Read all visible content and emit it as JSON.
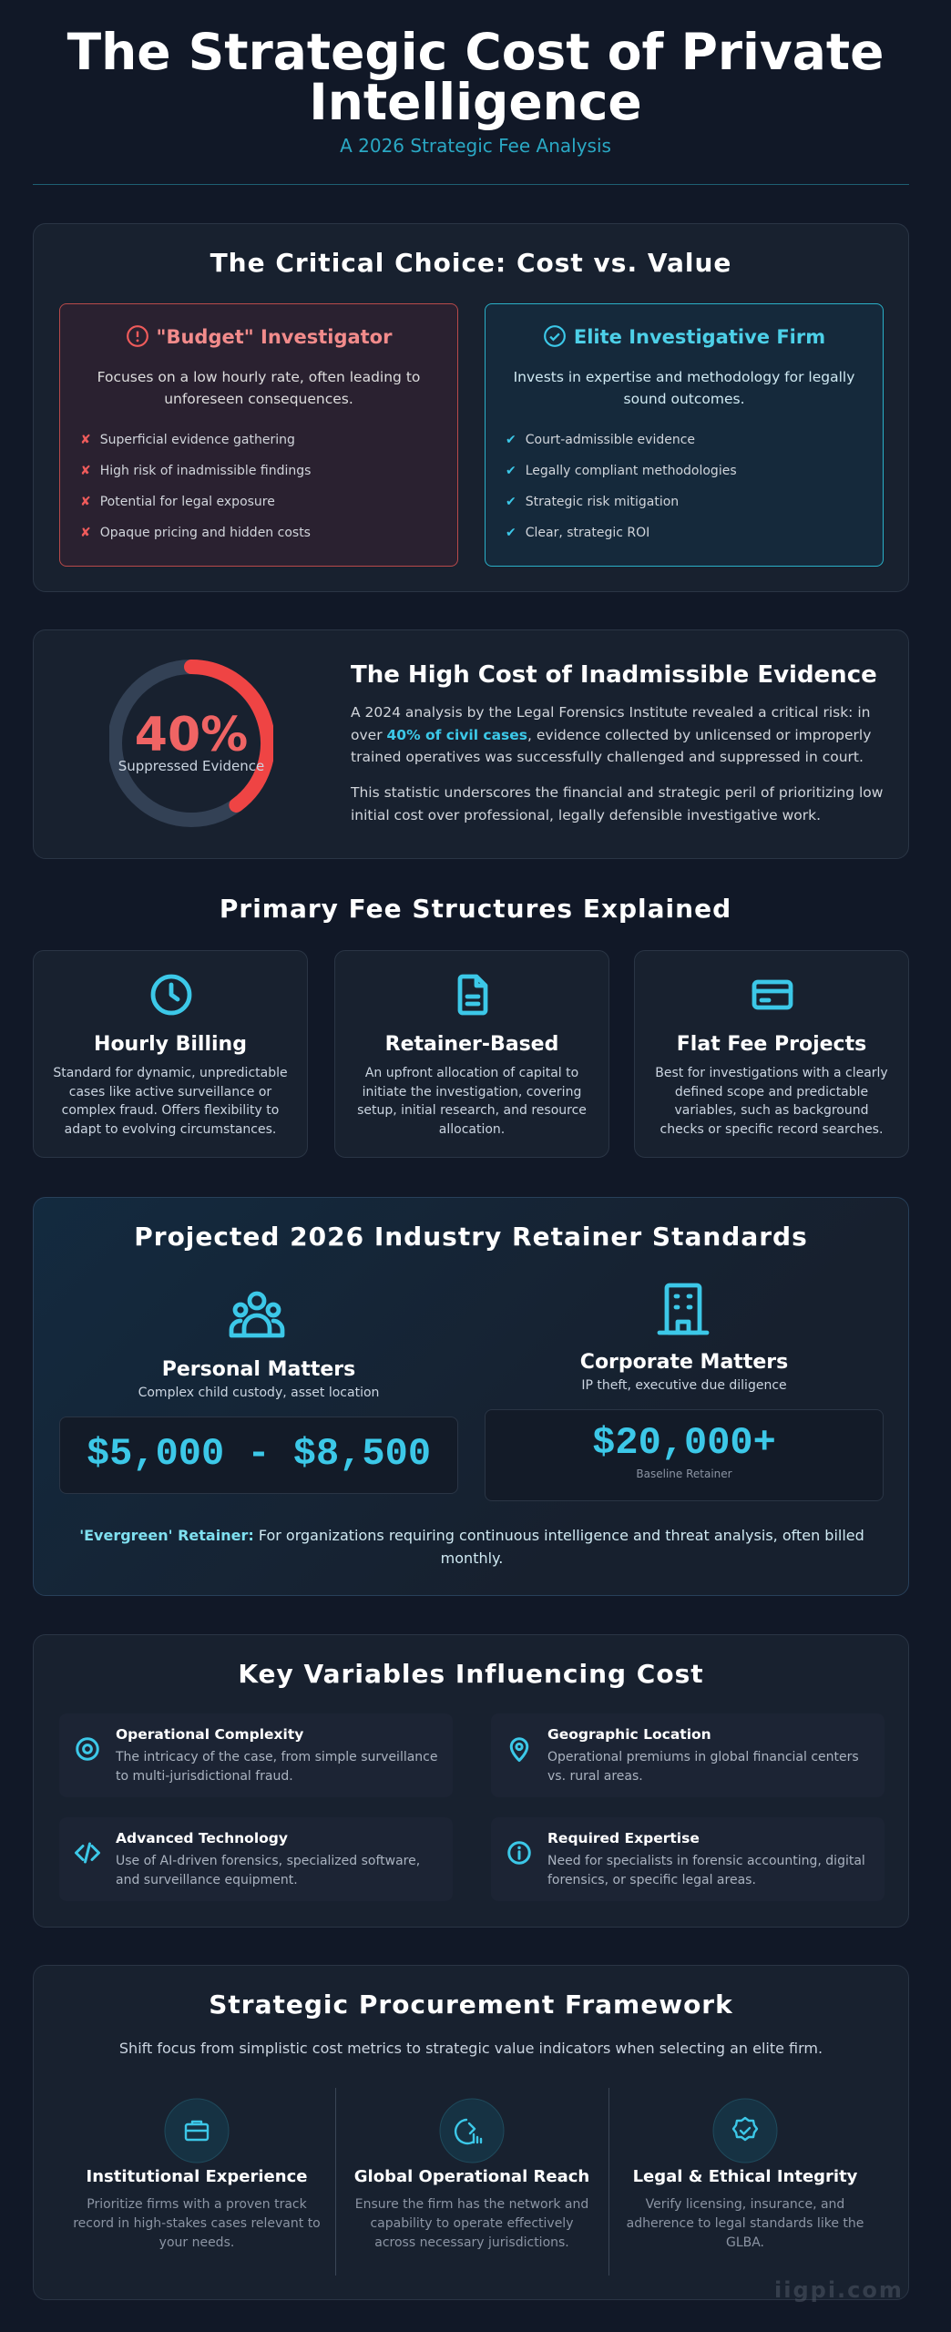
{
  "header": {
    "title": "The Strategic Cost of Private Intelligence",
    "subtitle": "A 2026 Strategic Fee Analysis"
  },
  "choice": {
    "title": "The Critical Choice: Cost vs. Value",
    "budget": {
      "title": "\"Budget\" Investigator",
      "description": "Focuses on a low hourly rate, often leading to unforeseen consequences.",
      "items": [
        "Superficial evidence gathering",
        "High risk of inadmissible findings",
        "Potential for legal exposure",
        "Opaque pricing and hidden costs"
      ]
    },
    "elite": {
      "title": "Elite Investigative Firm",
      "description": "Invests in expertise and methodology for legally sound outcomes.",
      "items": [
        "Court-admissible evidence",
        "Legally compliant methodologies",
        "Strategic risk mitigation",
        "Clear, strategic ROI"
      ]
    }
  },
  "evidence": {
    "stat": "40%",
    "stat_label": "Suppressed Evidence",
    "title": "The High Cost of Inadmissible Evidence",
    "paragraph_1": {
      "before": "A 2024 analysis by the Legal Forensics Institute revealed a critical risk: in over ",
      "highlight": "40% of civil cases",
      "after": ", evidence collected by unlicensed or improperly trained operatives was successfully challenged and suppressed in court."
    },
    "paragraph_2": "This statistic underscores the financial and strategic peril of prioritizing low initial cost over professional, legally defensible investigative work."
  },
  "fees": {
    "title": "Primary Fee Structures Explained",
    "cards": [
      {
        "title": "Hourly Billing",
        "description": "Standard for dynamic, unpredictable cases like active surveillance or complex fraud. Offers flexibility to adapt to evolving circumstances."
      },
      {
        "title": "Retainer-Based",
        "description": "An upfront allocation of capital to initiate the investigation, covering setup, initial research, and resource allocation."
      },
      {
        "title": "Flat Fee Projects",
        "description": "Best for investigations with a clearly defined scope and predictable variables, such as background checks or specific record searches."
      }
    ]
  },
  "retainers": {
    "title": "Projected 2026 Industry Retainer Standards",
    "personal": {
      "title": "Personal Matters",
      "subtitle": "Complex child custody, asset location",
      "price": "$5,000 - $8,500"
    },
    "corporate": {
      "title": "Corporate Matters",
      "subtitle": "IP theft, executive due diligence",
      "price": "$20,000+",
      "note": "Baseline Retainer"
    },
    "evergreen": {
      "label": "'Evergreen' Retainer:",
      "text": " For organizations requiring continuous intelligence and threat analysis, often billed monthly."
    }
  },
  "variables": {
    "title": "Key Variables Influencing Cost",
    "items": [
      {
        "title": "Operational Complexity",
        "description": "The intricacy of the case, from simple surveillance to multi-jurisdictional fraud."
      },
      {
        "title": "Geographic Location",
        "description": "Operational premiums in global financial centers vs. rural areas."
      },
      {
        "title": "Advanced Technology",
        "description": "Use of AI-driven forensics, specialized software, and surveillance equipment."
      },
      {
        "title": "Required Expertise",
        "description": "Need for specialists in forensic accounting, digital forensics, or specific legal areas."
      }
    ]
  },
  "procurement": {
    "title": "Strategic Procurement Framework",
    "intro": "Shift focus from simplistic cost metrics to strategic value indicators when selecting an elite firm.",
    "items": [
      {
        "title": "Institutional Experience",
        "description": "Prioritize firms with a proven track record in high-stakes cases relevant to your needs."
      },
      {
        "title": "Global Operational Reach",
        "description": "Ensure the firm has the network and capability to operate effectively across necessary jurisdictions."
      },
      {
        "title": "Legal & Ethical Integrity",
        "description": "Verify licensing, insurance, and adherence to legal standards like the GLBA."
      }
    ]
  },
  "watermark": "iigpi.com"
}
